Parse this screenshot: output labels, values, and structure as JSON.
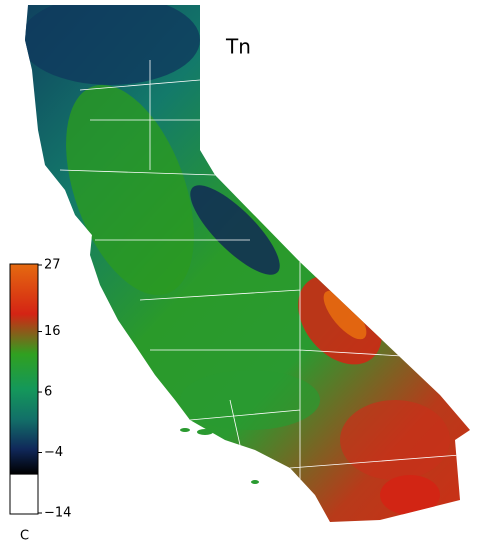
{
  "map": {
    "title": "Tn",
    "colorbar": {
      "range": [
        -14,
        27
      ],
      "ticks": [
        27,
        16,
        6,
        {
          "value": -4,
          "label": "−4"
        },
        {
          "value": -14,
          "label": "−14"
        }
      ],
      "unit": "C"
    }
  }
}
